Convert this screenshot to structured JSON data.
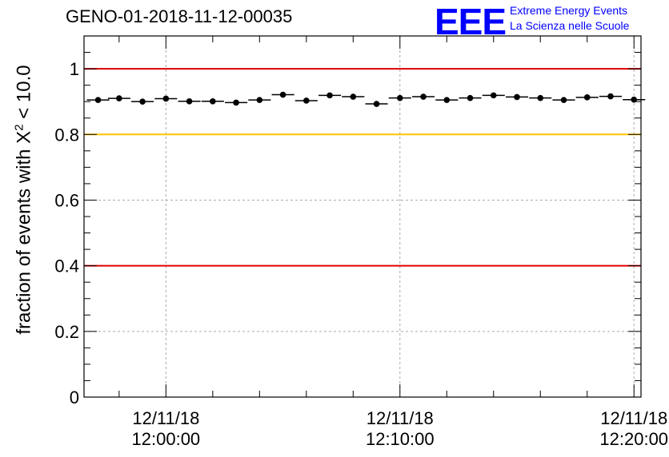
{
  "title": "GENO-01-2018-11-12-00035",
  "logo": {
    "mark": "EEE",
    "line1": "Extreme Energy Events",
    "line2": "La Scienza nelle Scuole",
    "color": "#0000ff"
  },
  "chart_data": {
    "type": "scatter",
    "ylabel_prefix": "fraction of events with X",
    "ylabel_sup": "2",
    "ylabel_suffix": " < 10.0",
    "ylim": [
      0,
      1.1
    ],
    "y_ticks": [
      0,
      0.2,
      0.4,
      0.6,
      0.8,
      1
    ],
    "y_tick_labels": [
      "0",
      "0.2",
      "0.4",
      "0.6",
      "0.8",
      "1"
    ],
    "x_ticks": [
      {
        "minute": 0,
        "date": "12/11/18",
        "time": "12:00:00"
      },
      {
        "minute": 10,
        "date": "12/11/18",
        "time": "12:10:00"
      },
      {
        "minute": 20,
        "date": "12/11/18",
        "time": "12:20:00"
      }
    ],
    "xlim_minutes": [
      -3.5,
      20.3
    ],
    "grid": true,
    "points": [
      {
        "minute": -2.9,
        "value": 0.905
      },
      {
        "minute": -2.0,
        "value": 0.91
      },
      {
        "minute": -1.0,
        "value": 0.9
      },
      {
        "minute": 0.0,
        "value": 0.909
      },
      {
        "minute": 1.0,
        "value": 0.901
      },
      {
        "minute": 2.0,
        "value": 0.901
      },
      {
        "minute": 3.0,
        "value": 0.897
      },
      {
        "minute": 4.0,
        "value": 0.905
      },
      {
        "minute": 5.0,
        "value": 0.921
      },
      {
        "minute": 6.0,
        "value": 0.903
      },
      {
        "minute": 7.0,
        "value": 0.919
      },
      {
        "minute": 8.0,
        "value": 0.915
      },
      {
        "minute": 9.0,
        "value": 0.893
      },
      {
        "minute": 10.0,
        "value": 0.911
      },
      {
        "minute": 11.0,
        "value": 0.915
      },
      {
        "minute": 12.0,
        "value": 0.905
      },
      {
        "minute": 13.0,
        "value": 0.911
      },
      {
        "minute": 14.0,
        "value": 0.919
      },
      {
        "minute": 15.0,
        "value": 0.914
      },
      {
        "minute": 16.0,
        "value": 0.911
      },
      {
        "minute": 17.0,
        "value": 0.905
      },
      {
        "minute": 18.0,
        "value": 0.913
      },
      {
        "minute": 19.0,
        "value": 0.916
      },
      {
        "minute": 20.0,
        "value": 0.906
      }
    ],
    "reference_lines": [
      {
        "value": 1.0,
        "color": "#e00000"
      },
      {
        "value": 0.8,
        "color": "#ffc400"
      },
      {
        "value": 0.4,
        "color": "#e00000"
      }
    ]
  }
}
